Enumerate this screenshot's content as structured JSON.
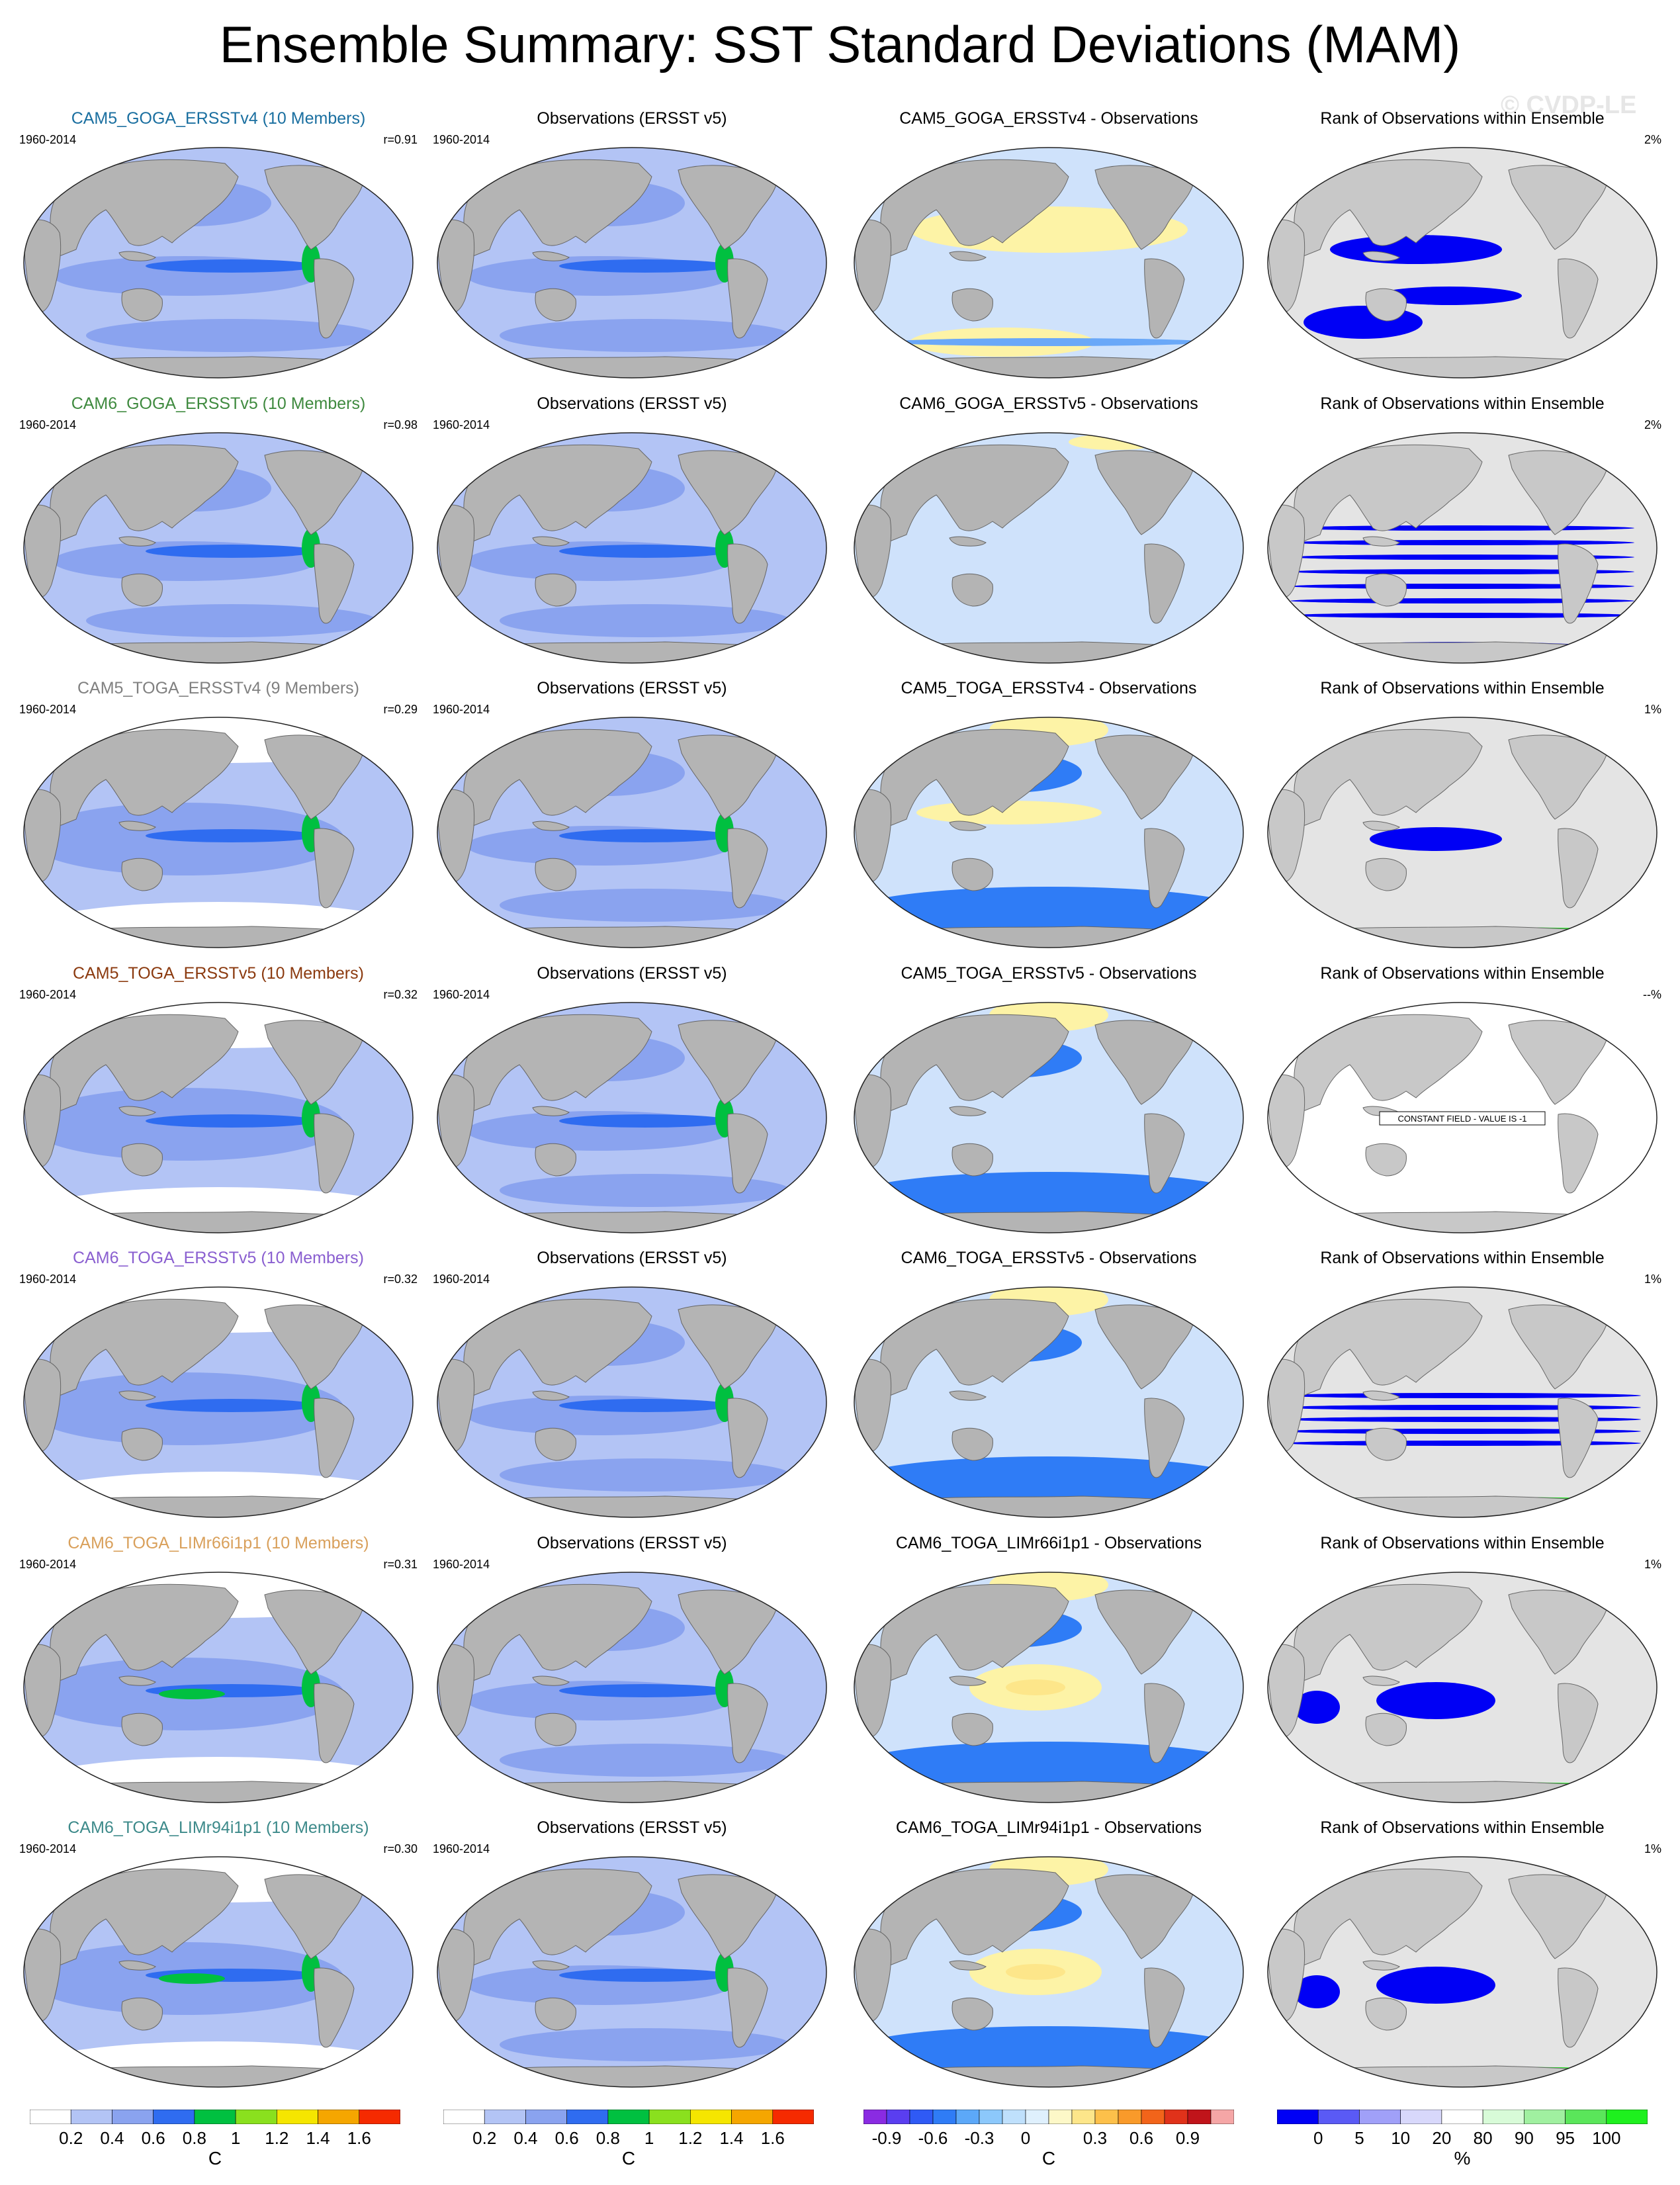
{
  "title": "Ensemble Summary: SST Standard Deviations (MAM)",
  "watermark": "© CVDP-LE",
  "colors": {
    "ocean_light": "#b3c4f5",
    "ocean_mid": "#8aa3ef",
    "ocean_dark": "#2f6cf0",
    "ocean_green": "#00c040",
    "land": "#b4b4b4",
    "diff_pale": "#cfe2fb",
    "diff_yellow": "#fdf3a6",
    "diff_blue": "#2f7cf6",
    "rank_blue": "#0000f5",
    "rank_green": "#1ef01e",
    "rank_bg": "#e4e4e4"
  },
  "rows": [
    {
      "model": {
        "title": "CAM5_GOGA_ERSSTv4 (10 Members)",
        "title_color": "#1a6fa0",
        "period": "1960-2014",
        "corr": "r=0.91"
      },
      "obs": {
        "title": "Observations (ERSST v5)",
        "period": "1960-2014"
      },
      "diff": {
        "title": "CAM5_GOGA_ERSSTv4 - Observations"
      },
      "rank": {
        "title": "Rank of Observations within Ensemble",
        "pct": "2%",
        "note": ""
      }
    },
    {
      "model": {
        "title": "CAM6_GOGA_ERSSTv5 (10 Members)",
        "title_color": "#3f8a3f",
        "period": "1960-2014",
        "corr": "r=0.98"
      },
      "obs": {
        "title": "Observations (ERSST v5)",
        "period": "1960-2014"
      },
      "diff": {
        "title": "CAM6_GOGA_ERSSTv5 - Observations"
      },
      "rank": {
        "title": "Rank of Observations within Ensemble",
        "pct": "2%",
        "note": ""
      }
    },
    {
      "model": {
        "title": "CAM5_TOGA_ERSSTv4 (9 Members)",
        "title_color": "#808080",
        "period": "1960-2014",
        "corr": "r=0.29"
      },
      "obs": {
        "title": "Observations (ERSST v5)",
        "period": "1960-2014"
      },
      "diff": {
        "title": "CAM5_TOGA_ERSSTv4 - Observations"
      },
      "rank": {
        "title": "Rank of Observations within Ensemble",
        "pct": "1%",
        "note": ""
      }
    },
    {
      "model": {
        "title": "CAM5_TOGA_ERSSTv5 (10 Members)",
        "title_color": "#8b3a0f",
        "period": "1960-2014",
        "corr": "r=0.32"
      },
      "obs": {
        "title": "Observations (ERSST v5)",
        "period": "1960-2014"
      },
      "diff": {
        "title": "CAM5_TOGA_ERSSTv5 - Observations"
      },
      "rank": {
        "title": "Rank of Observations within Ensemble",
        "pct": "--%",
        "note": "CONSTANT FIELD - VALUE IS -1"
      }
    },
    {
      "model": {
        "title": "CAM6_TOGA_ERSSTv5 (10 Members)",
        "title_color": "#8a5fd0",
        "period": "1960-2014",
        "corr": "r=0.32"
      },
      "obs": {
        "title": "Observations (ERSST v5)",
        "period": "1960-2014"
      },
      "diff": {
        "title": "CAM6_TOGA_ERSSTv5 - Observations"
      },
      "rank": {
        "title": "Rank of Observations within Ensemble",
        "pct": "1%",
        "note": ""
      }
    },
    {
      "model": {
        "title": "CAM6_TOGA_LIMr66i1p1 (10 Members)",
        "title_color": "#d9a05b",
        "period": "1960-2014",
        "corr": "r=0.31"
      },
      "obs": {
        "title": "Observations (ERSST v5)",
        "period": "1960-2014"
      },
      "diff": {
        "title": "CAM6_TOGA_LIMr66i1p1 - Observations"
      },
      "rank": {
        "title": "Rank of Observations within Ensemble",
        "pct": "1%",
        "note": ""
      }
    },
    {
      "model": {
        "title": "CAM6_TOGA_LIMr94i1p1 (10 Members)",
        "title_color": "#3d8a8a",
        "period": "1960-2014",
        "corr": "r=0.30"
      },
      "obs": {
        "title": "Observations (ERSST v5)",
        "period": "1960-2014"
      },
      "diff": {
        "title": "CAM6_TOGA_LIMr94i1p1 - Observations"
      },
      "rank": {
        "title": "Rank of Observations within Ensemble",
        "pct": "1%",
        "note": ""
      }
    }
  ],
  "colorbars": [
    {
      "unit": "C",
      "ticks": [
        "0.2",
        "0.4",
        "0.6",
        "0.8",
        "1",
        "1.2",
        "1.4",
        "1.6"
      ],
      "colors": [
        "#ffffff",
        "#b3c4f5",
        "#8aa3ef",
        "#2f6cf0",
        "#00c040",
        "#8ae01e",
        "#f5e600",
        "#f5a600",
        "#f52a00"
      ]
    },
    {
      "unit": "C",
      "ticks": [
        "0.2",
        "0.4",
        "0.6",
        "0.8",
        "1",
        "1.2",
        "1.4",
        "1.6"
      ],
      "colors": [
        "#ffffff",
        "#b3c4f5",
        "#8aa3ef",
        "#2f6cf0",
        "#00c040",
        "#8ae01e",
        "#f5e600",
        "#f5a600",
        "#f52a00"
      ]
    },
    {
      "unit": "C",
      "ticks": [
        "-0.9",
        "-0.6",
        "-0.3",
        "0",
        "0.3",
        "0.6",
        "0.9"
      ],
      "colors": [
        "#8a2be2",
        "#5a3ef0",
        "#2f5af5",
        "#2f7cf6",
        "#5ca8f8",
        "#8cc8fb",
        "#bfe0fc",
        "#dff0fd",
        "#fdf8c8",
        "#fde68a",
        "#fdc04a",
        "#f99a2a",
        "#f2641a",
        "#e0321a",
        "#c0141a",
        "#f5a6a6"
      ]
    },
    {
      "unit": "%",
      "ticks": [
        "0",
        "5",
        "10",
        "20",
        "80",
        "90",
        "95",
        "100"
      ],
      "colors": [
        "#0000f5",
        "#5a5af5",
        "#a0a0f8",
        "#d8d8fb",
        "#ffffff",
        "#d8fbd8",
        "#a0f0a0",
        "#5ae65a",
        "#1ef01e"
      ]
    }
  ]
}
